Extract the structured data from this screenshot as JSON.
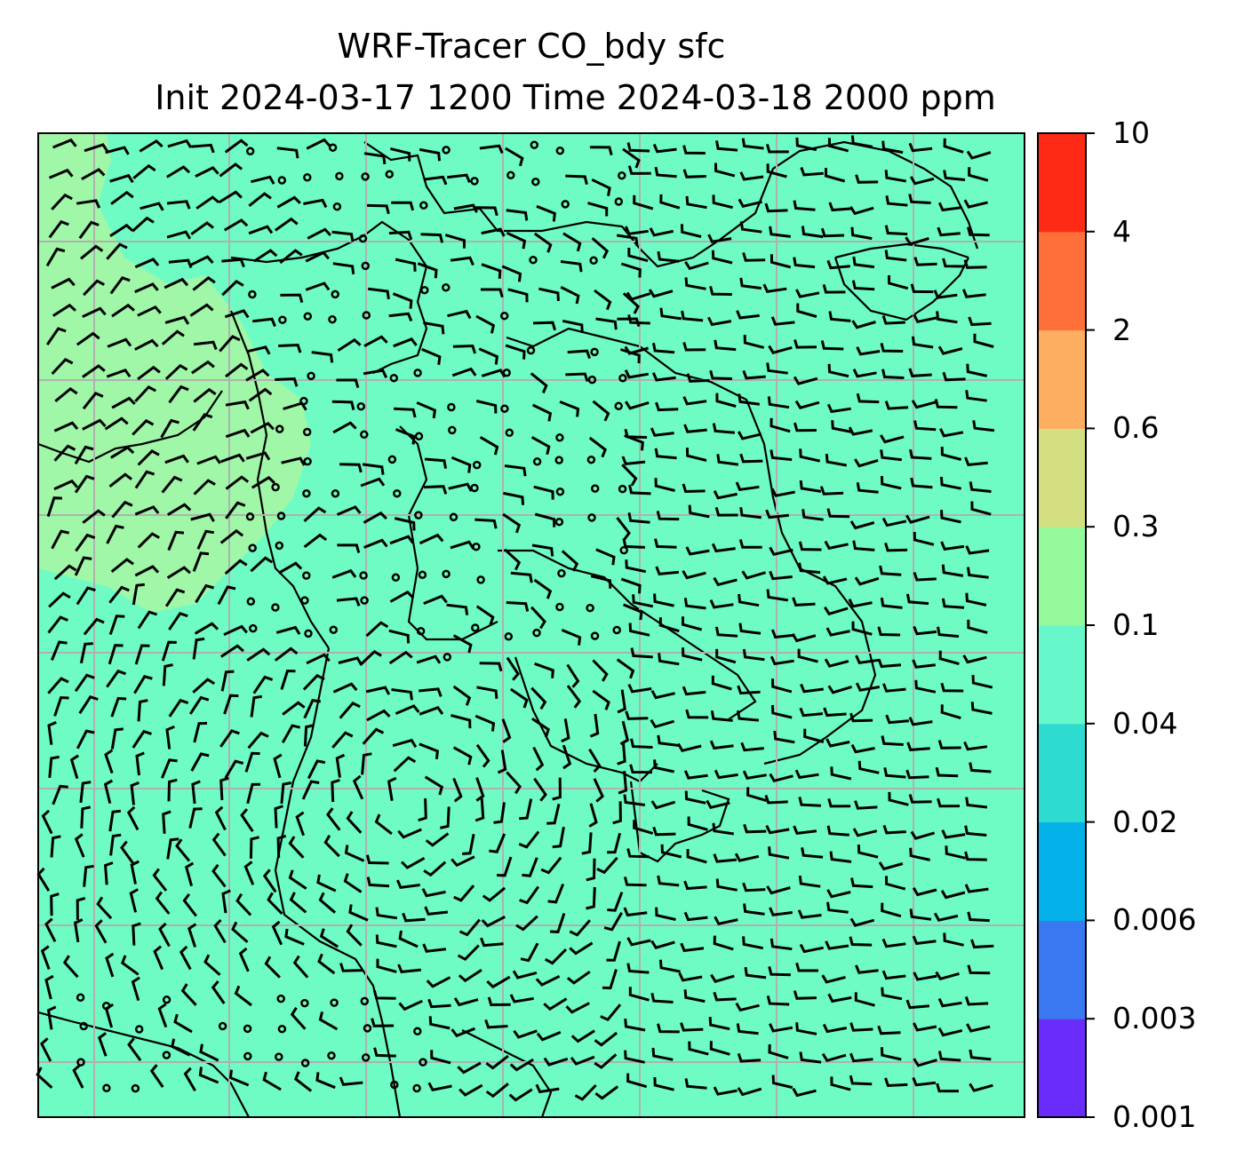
{
  "title": {
    "line1": "WRF-Tracer CO_bdy sfc",
    "line2": "Init 2024-03-17 1200 Time 2024-03-18 2000 ppm"
  },
  "colorbar": {
    "levels": [
      "0.001",
      "0.003",
      "0.006",
      "0.02",
      "0.04",
      "0.1",
      "0.3",
      "0.6",
      "2",
      "4",
      "10"
    ],
    "colors": [
      "#6a2cf9",
      "#3a78f2",
      "#04b1e8",
      "#2ddbd0",
      "#66f7ca",
      "#95fa9c",
      "#d4df82",
      "#fdae60",
      "#ff6f3a",
      "#ff2a16"
    ]
  },
  "map": {
    "background_color": "#6efcc4",
    "elevated_color": "#a0f7a8",
    "coastline_color": "#000000",
    "gridline_color": "#b0b0b0"
  }
}
